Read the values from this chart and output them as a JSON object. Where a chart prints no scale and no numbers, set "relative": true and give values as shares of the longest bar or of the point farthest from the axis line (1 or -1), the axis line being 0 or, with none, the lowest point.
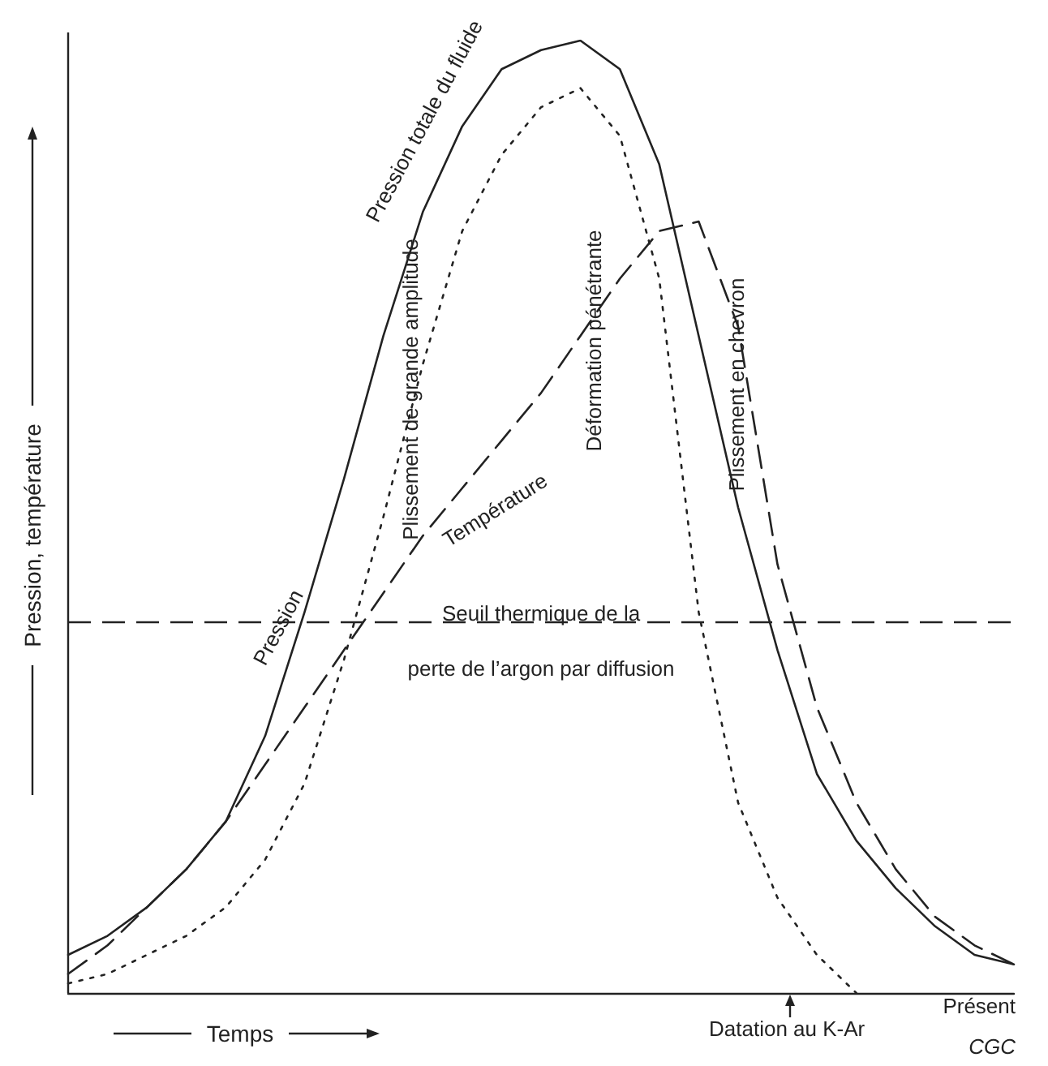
{
  "chart_data": {
    "type": "line",
    "relative": true,
    "xlabel": "Temps",
    "ylabel": "Pression, température",
    "categories": [
      null,
      null,
      null,
      null,
      null,
      null,
      null,
      null,
      null,
      null,
      null,
      null,
      null,
      null,
      null,
      null,
      null,
      null,
      null,
      null,
      null,
      null,
      null,
      null,
      null
    ],
    "series": [
      {
        "name": "Pression",
        "color": "#222222",
        "line_style": "solid",
        "values": [
          0.04,
          0.06,
          0.09,
          0.13,
          0.18,
          0.27,
          0.4,
          0.54,
          0.69,
          0.82,
          0.91,
          0.97,
          0.99,
          1.0,
          0.97,
          0.87,
          0.69,
          0.51,
          0.36,
          0.23,
          0.16,
          0.11,
          0.07,
          0.04,
          0.03
        ]
      },
      {
        "name": "Pression totale du fluide",
        "color": "#222222",
        "line_style": "dotted",
        "values": [
          0.01,
          0.02,
          0.04,
          0.06,
          0.09,
          0.14,
          0.22,
          0.35,
          0.5,
          0.66,
          0.8,
          0.88,
          0.93,
          0.95,
          0.9,
          0.75,
          0.4,
          0.2,
          0.1,
          0.04,
          0.0,
          null,
          null,
          null,
          null
        ]
      },
      {
        "name": "Température",
        "color": "#222222",
        "line_style": "dashed",
        "values": [
          0.02,
          0.05,
          0.09,
          0.13,
          0.18,
          0.24,
          0.3,
          0.36,
          0.42,
          0.48,
          0.53,
          0.58,
          0.63,
          0.69,
          0.75,
          0.8,
          0.81,
          0.7,
          0.45,
          0.3,
          0.2,
          0.13,
          0.08,
          0.05,
          0.03
        ]
      }
    ],
    "ref_lines": [
      {
        "axis": "y",
        "value": 0.39,
        "label": "Seuil thermique de la\nperte de l’argon par diffusion",
        "color": "#222222",
        "line_style": "dashed"
      }
    ],
    "annotations": [
      "Plissement de grande amplitude",
      "Déformation pénétrante",
      "Plissement en chevron",
      "Datation au K-Ar",
      "Présent",
      "CGC"
    ],
    "marker": "none",
    "grid": false,
    "legend": false
  }
}
